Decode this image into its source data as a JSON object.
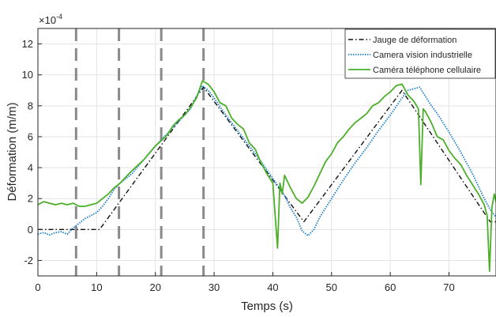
{
  "chart_data": {
    "type": "line",
    "title": "",
    "xlabel": "Temps (s)",
    "ylabel": "Déformation (m/m)",
    "y_exponent_label": "×10",
    "y_exponent_power": "-4",
    "xlim": [
      0,
      78
    ],
    "ylim": [
      -3,
      13
    ],
    "xticks": [
      0,
      10,
      20,
      30,
      40,
      50,
      60,
      70
    ],
    "yticks": [
      -2,
      0,
      2,
      4,
      6,
      8,
      10,
      12
    ],
    "grid": true,
    "legend_position": "top-right",
    "vertical_markers": {
      "color": "#8a8a8a",
      "x": [
        6.5,
        13.8,
        21.0,
        28.2
      ]
    },
    "series": [
      {
        "name": "Jauge de déformation",
        "color": "#111111",
        "style": "dashdot",
        "x": [
          0,
          10.5,
          28.2,
          45.3,
          62.0,
          77,
          78
        ],
        "y": [
          0,
          0,
          9.2,
          0.5,
          9.0,
          0.5,
          0.5
        ]
      },
      {
        "name": "Camera vision industrielle",
        "color": "#1a7fd1",
        "style": "dotted",
        "x": [
          0,
          1,
          2,
          3,
          4,
          5,
          6,
          7,
          8,
          9,
          10,
          11,
          12,
          13,
          14,
          16,
          18,
          20,
          22,
          24,
          26,
          27,
          28,
          29,
          30,
          32,
          34,
          36,
          38,
          40,
          42,
          43,
          44,
          45,
          46,
          47,
          48,
          50,
          52,
          54,
          56,
          58,
          60,
          62,
          63,
          64,
          65,
          66,
          67,
          68,
          70,
          72,
          74,
          76,
          77,
          78
        ],
        "y": [
          -0.3,
          -0.2,
          -0.35,
          -0.2,
          -0.15,
          -0.3,
          0.1,
          0.4,
          0.7,
          0.9,
          1.1,
          1.5,
          2.0,
          2.6,
          3.0,
          3.6,
          4.5,
          5.4,
          6.2,
          7.0,
          7.8,
          8.6,
          9.3,
          9.0,
          8.5,
          7.4,
          6.4,
          5.4,
          4.4,
          3.3,
          2.2,
          1.4,
          0.8,
          -0.1,
          -0.4,
          0.0,
          0.8,
          2.0,
          3.2,
          4.3,
          5.3,
          6.4,
          7.4,
          8.5,
          9.0,
          9.1,
          9.2,
          8.6,
          8.0,
          7.5,
          6.3,
          5.0,
          3.6,
          2.0,
          1.3,
          0.8
        ]
      },
      {
        "name": "Caméra téléphone cellulaire",
        "color": "#4caf2a",
        "style": "solid",
        "x": [
          0,
          1,
          2,
          3,
          4,
          5,
          6,
          7,
          8,
          9,
          10,
          11,
          12,
          13,
          14,
          15,
          16,
          18,
          20,
          22,
          23,
          24,
          25,
          26,
          27,
          28,
          29,
          30,
          31,
          32,
          33,
          34,
          35,
          36,
          37,
          38,
          39,
          40,
          40.8,
          41.2,
          41.6,
          42,
          43,
          44,
          45,
          46,
          47,
          48,
          49,
          50,
          51,
          52,
          53,
          54,
          55,
          56,
          57,
          58,
          59,
          60,
          61,
          62,
          63,
          64,
          64.8,
          65.2,
          65.6,
          66,
          67,
          68,
          69,
          70,
          71,
          72,
          73,
          74,
          75,
          76,
          76.5,
          76.9,
          77.3,
          77.7,
          78
        ],
        "y": [
          1.6,
          1.8,
          1.7,
          1.6,
          1.7,
          1.6,
          1.7,
          1.5,
          1.5,
          1.6,
          1.7,
          2.0,
          2.3,
          2.7,
          3.0,
          3.4,
          3.8,
          4.5,
          5.4,
          6.1,
          6.7,
          7.1,
          7.4,
          7.9,
          8.5,
          9.6,
          9.4,
          8.9,
          8.2,
          8.0,
          7.2,
          6.8,
          6.5,
          5.6,
          5.2,
          4.3,
          3.6,
          3.0,
          -1.2,
          3.0,
          2.3,
          3.5,
          2.7,
          2.0,
          1.7,
          2.1,
          2.8,
          3.6,
          4.4,
          4.9,
          5.6,
          6.0,
          6.5,
          6.9,
          7.2,
          7.5,
          8.0,
          8.2,
          8.6,
          8.9,
          9.3,
          9.4,
          8.7,
          8.3,
          7.8,
          2.9,
          7.8,
          7.6,
          6.9,
          6.0,
          5.8,
          5.1,
          4.6,
          4.2,
          3.5,
          2.9,
          2.3,
          1.6,
          0.9,
          -2.7,
          1.4,
          2.3,
          1.8
        ]
      }
    ]
  }
}
